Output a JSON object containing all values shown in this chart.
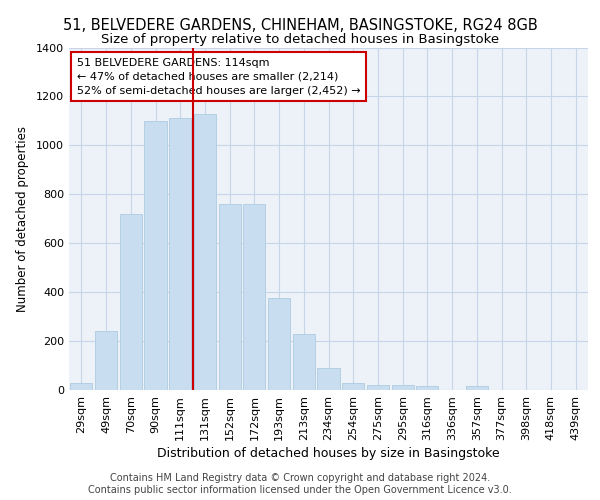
{
  "title1": "51, BELVEDERE GARDENS, CHINEHAM, BASINGSTOKE, RG24 8GB",
  "title2": "Size of property relative to detached houses in Basingstoke",
  "xlabel": "Distribution of detached houses by size in Basingstoke",
  "ylabel": "Number of detached properties",
  "footer1": "Contains HM Land Registry data © Crown copyright and database right 2024.",
  "footer2": "Contains public sector information licensed under the Open Government Licence v3.0.",
  "annotation_line1": "51 BELVEDERE GARDENS: 114sqm",
  "annotation_line2": "← 47% of detached houses are smaller (2,214)",
  "annotation_line3": "52% of semi-detached houses are larger (2,452) →",
  "bar_color": "#c8ddf0",
  "bar_edge_color": "#b0cce0",
  "vline_color": "#cc0000",
  "annotation_box_edgecolor": "#cc0000",
  "grid_color": "#c8d4e8",
  "bg_color": "#edf2f9",
  "categories": [
    "29sqm",
    "49sqm",
    "70sqm",
    "90sqm",
    "111sqm",
    "131sqm",
    "152sqm",
    "172sqm",
    "193sqm",
    "213sqm",
    "234sqm",
    "254sqm",
    "275sqm",
    "295sqm",
    "316sqm",
    "336sqm",
    "357sqm",
    "377sqm",
    "398sqm",
    "418sqm",
    "439sqm"
  ],
  "values": [
    30,
    240,
    720,
    1100,
    1110,
    1130,
    760,
    760,
    375,
    230,
    90,
    30,
    20,
    20,
    15,
    0,
    15,
    0,
    0,
    0,
    0
  ],
  "ylim": [
    0,
    1400
  ],
  "yticks": [
    0,
    200,
    400,
    600,
    800,
    1000,
    1200,
    1400
  ],
  "vline_x_index": 4,
  "title1_fontsize": 10.5,
  "title2_fontsize": 9.5,
  "xlabel_fontsize": 9,
  "ylabel_fontsize": 8.5,
  "tick_fontsize": 8,
  "annotation_fontsize": 8,
  "footer_fontsize": 7
}
